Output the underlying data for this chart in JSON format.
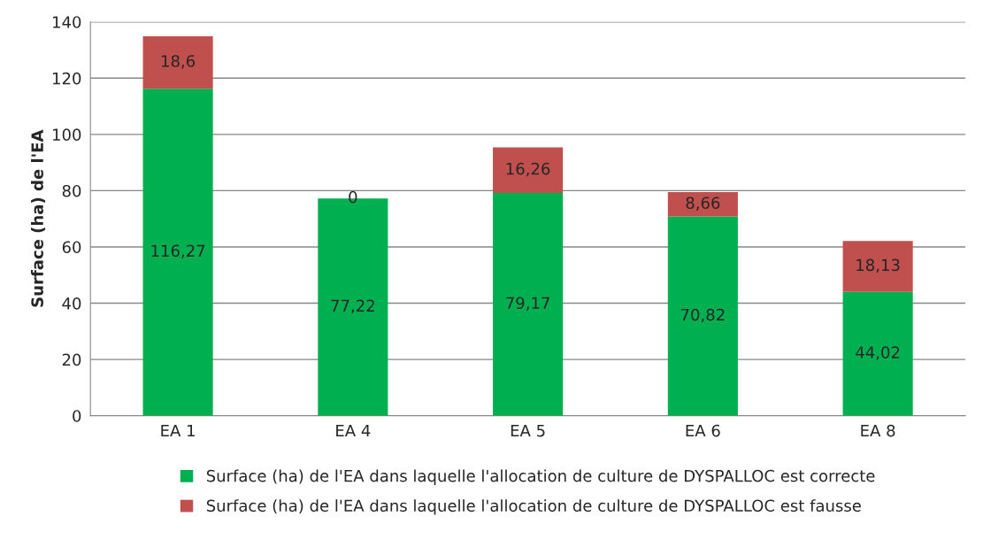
{
  "chart_data": {
    "type": "bar",
    "stacked": true,
    "ylabel": "Surface (ha) de l'EA",
    "categories": [
      "EA 1",
      "EA 4",
      "EA 5",
      "EA 6",
      "EA 8"
    ],
    "series": [
      {
        "name": "Surface (ha) de l'EA dans laquelle l'allocation de culture de DYSPALLOC est correcte",
        "color": "#00b050",
        "values": [
          116.27,
          77.22,
          79.17,
          70.82,
          44.02
        ],
        "value_labels": [
          "116,27",
          "77,22",
          "79,17",
          "70,82",
          "44,02"
        ]
      },
      {
        "name": "Surface (ha) de l'EA dans laquelle l'allocation de culture de DYSPALLOC est fausse",
        "color": "#c0504d",
        "values": [
          18.6,
          0,
          16.26,
          8.66,
          18.13
        ],
        "value_labels": [
          "18,6",
          "0",
          "16,26",
          "8,66",
          "18,13"
        ]
      }
    ],
    "ylim": [
      0,
      140
    ],
    "yticks": [
      0,
      20,
      40,
      60,
      80,
      100,
      120,
      140
    ],
    "grid": "y",
    "legend": "bottom"
  }
}
